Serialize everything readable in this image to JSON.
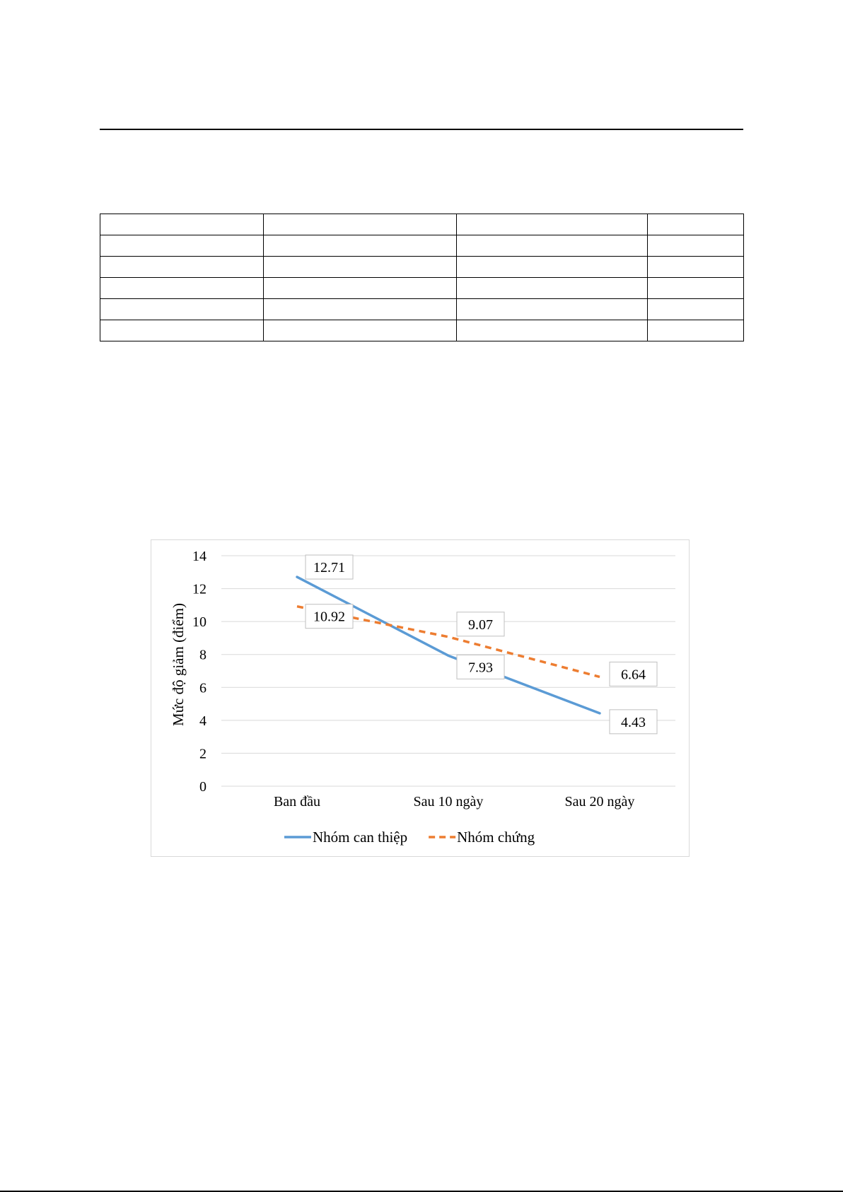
{
  "colors": {
    "series_1": "#5b9bd5",
    "series_2": "#ed7d31",
    "grid": "#d9d9d9",
    "frame": "#d9d9d9"
  },
  "table": {
    "rows": 6,
    "cols": 4
  },
  "chart_data": {
    "type": "line",
    "title": "",
    "xlabel": "",
    "ylabel": "Mức độ giảm (điểm)",
    "categories": [
      "Ban đầu",
      "Sau 10 ngày",
      "Sau 20 ngày"
    ],
    "ylim": [
      0,
      14
    ],
    "yticks": [
      0,
      2,
      4,
      6,
      8,
      10,
      12,
      14
    ],
    "grid": true,
    "legend_position": "bottom",
    "series": [
      {
        "name": "Nhóm can thiệp",
        "values": [
          12.71,
          7.93,
          4.43
        ],
        "labels": [
          "12.71",
          "7.93",
          "4.43"
        ],
        "color": "#5b9bd5",
        "line_style": "solid"
      },
      {
        "name": "Nhóm chứng",
        "values": [
          10.92,
          9.07,
          6.64
        ],
        "labels": [
          "10.92",
          "9.07",
          "6.64"
        ],
        "color": "#ed7d31",
        "line_style": "dashed"
      }
    ]
  }
}
